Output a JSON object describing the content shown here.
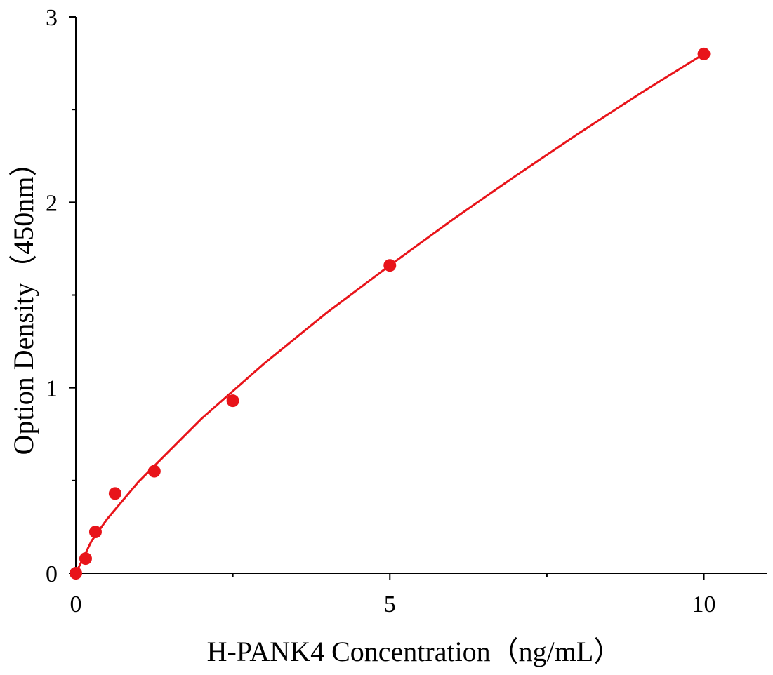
{
  "chart_data": {
    "type": "scatter",
    "x_label": "H-PANK4 Concentration（ng/mL）",
    "y_label": "Option Density（450nm）",
    "xlim": [
      0,
      11
    ],
    "ylim": [
      0,
      3
    ],
    "xticks": [
      0,
      5,
      10
    ],
    "yticks": [
      0,
      1,
      2,
      3
    ],
    "xminorticks": [
      2.5,
      7.5
    ],
    "yminorticks": [
      0.5,
      1.5,
      2.5
    ],
    "series": [
      {
        "mode": "markers",
        "color": "#e8141a",
        "x": [
          0,
          0.156,
          0.3125,
          0.625,
          1.25,
          2.5,
          5,
          10
        ],
        "values": [
          0.0,
          0.079,
          0.223,
          0.43,
          0.55,
          0.93,
          1.66,
          2.8
        ]
      },
      {
        "mode": "line",
        "color": "#e8141a",
        "x": [
          0,
          0.25,
          0.5,
          1,
          2,
          3,
          4,
          5,
          6,
          7,
          8,
          9,
          10
        ],
        "values": [
          0,
          0.174,
          0.293,
          0.494,
          0.833,
          1.131,
          1.406,
          1.66,
          1.907,
          2.142,
          2.37,
          2.59,
          2.8
        ]
      }
    ]
  }
}
